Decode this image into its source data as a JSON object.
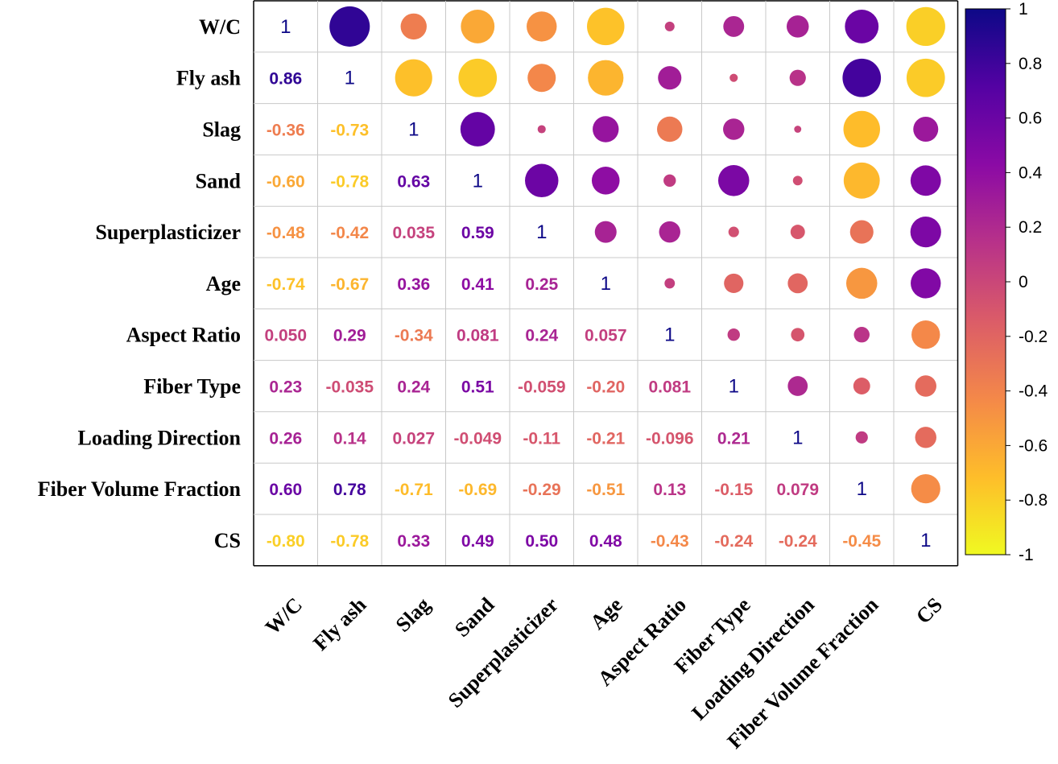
{
  "chart_data": {
    "type": "heatmap",
    "subtype": "correlation-matrix",
    "variables": [
      "W/C",
      "Fly ash",
      "Slag",
      "Sand",
      "Superplasticizer",
      "Age",
      "Aspect Ratio",
      "Fiber Type",
      "Loading Direction",
      "Fiber Volume Fraction",
      "CS"
    ],
    "lower_labels": [
      [
        "1"
      ],
      [
        "0.86",
        "1"
      ],
      [
        "-0.36",
        "-0.73",
        "1"
      ],
      [
        "-0.60",
        "-0.78",
        "0.63",
        "1"
      ],
      [
        "-0.48",
        "-0.42",
        "0.035",
        "0.59",
        "1"
      ],
      [
        "-0.74",
        "-0.67",
        "0.36",
        "0.41",
        "0.25",
        "1"
      ],
      [
        "0.050",
        "0.29",
        "-0.34",
        "0.081",
        "0.24",
        "0.057",
        "1"
      ],
      [
        "0.23",
        "-0.035",
        "0.24",
        "0.51",
        "-0.059",
        "-0.20",
        "0.081",
        "1"
      ],
      [
        "0.26",
        "0.14",
        "0.027",
        "-0.049",
        "-0.11",
        "-0.21",
        "-0.096",
        "0.21",
        "1"
      ],
      [
        "0.60",
        "0.78",
        "-0.71",
        "-0.69",
        "-0.29",
        "-0.51",
        "0.13",
        "-0.15",
        "0.079",
        "1"
      ],
      [
        "-0.80",
        "-0.78",
        "0.33",
        "0.49",
        "0.50",
        "0.48",
        "-0.43",
        "-0.24",
        "-0.24",
        "-0.45",
        "1"
      ]
    ],
    "colorbar": {
      "ticks": [
        "1",
        "0.8",
        "0.6",
        "0.4",
        "0.2",
        "0",
        "-0.2",
        "-0.4",
        "-0.6",
        "-0.8",
        "-1"
      ],
      "range": [
        -1,
        1
      ],
      "colors": [
        "#f0f921",
        "#febd2a",
        "#f48849",
        "#db5c68",
        "#b83289",
        "#8b0aa5",
        "#5402a3",
        "#0d0887"
      ]
    },
    "upper_circles": "symmetric to lower triangle; circle size and colour encode correlation value"
  }
}
